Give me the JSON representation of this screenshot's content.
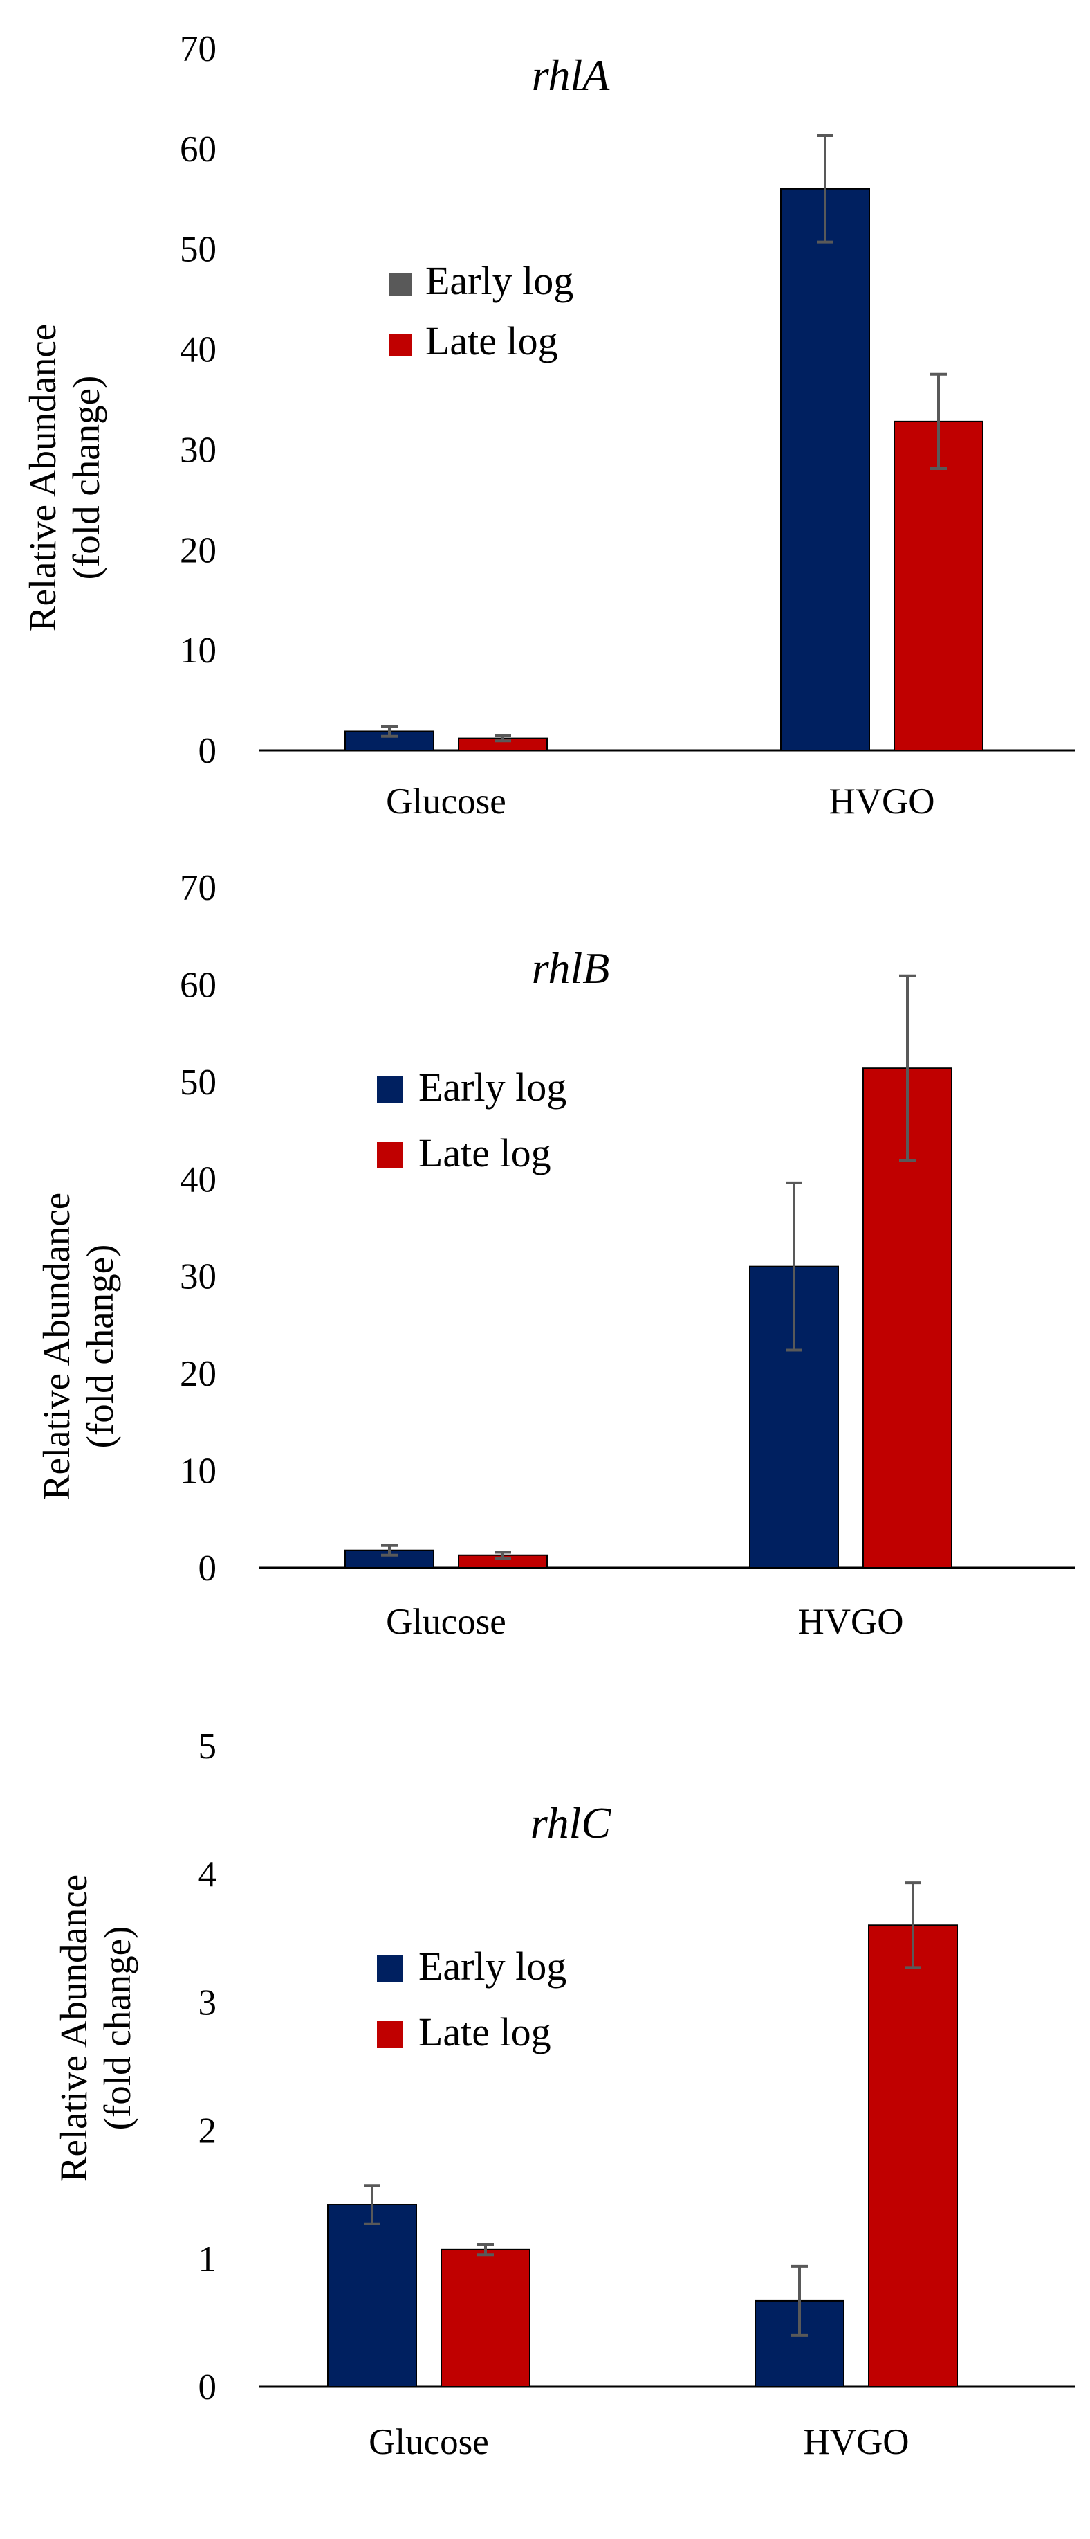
{
  "chart_data": [
    {
      "type": "bar",
      "title": "rhlA",
      "ylabel_line1": "Relative Abundance",
      "ylabel_line2": "(fold change)",
      "categories": [
        "Glucose",
        "HVGO"
      ],
      "ylim": [
        0,
        70
      ],
      "yticks": [
        "0",
        "10",
        "20",
        "30",
        "40",
        "50",
        "60",
        "70"
      ],
      "yticks_values": [
        0,
        10,
        20,
        30,
        40,
        50,
        60,
        70
      ],
      "legend_position": "upper-left",
      "series": [
        {
          "name": "Early log",
          "values": [
            1.9,
            56.0
          ],
          "errors": [
            0.5,
            5.3
          ],
          "color": "#002060",
          "legend_swatch_color": "#595959"
        },
        {
          "name": "Late log",
          "values": [
            1.2,
            32.8
          ],
          "errors": [
            0.25,
            4.7
          ],
          "color": "#C00000",
          "legend_swatch_color": "#C00000"
        }
      ],
      "error_color": "#595959"
    },
    {
      "type": "bar",
      "title": "rhlB",
      "ylabel_line1": "Relative Abundance",
      "ylabel_line2": "(fold change)",
      "categories": [
        "Glucose",
        "HVGO"
      ],
      "ylim": [
        0,
        70
      ],
      "yticks": [
        "0",
        "10",
        "20",
        "30",
        "40",
        "50",
        "60",
        "70"
      ],
      "yticks_values": [
        0,
        10,
        20,
        30,
        40,
        50,
        60,
        70
      ],
      "legend_position": "upper-left",
      "series": [
        {
          "name": "Early log",
          "values": [
            1.8,
            31.0
          ],
          "errors": [
            0.5,
            8.6
          ],
          "color": "#002060",
          "legend_swatch_color": "#002060"
        },
        {
          "name": "Late log",
          "values": [
            1.3,
            51.4
          ],
          "errors": [
            0.3,
            9.5
          ],
          "color": "#C00000",
          "legend_swatch_color": "#C00000"
        }
      ],
      "error_color": "#595959"
    },
    {
      "type": "bar",
      "title": "rhlC",
      "ylabel_line1": "Relative Abundance",
      "ylabel_line2": "(fold change)",
      "categories": [
        "Glucose",
        "HVGO"
      ],
      "ylim": [
        0,
        5
      ],
      "yticks": [
        "0",
        "1",
        "2",
        "3",
        "4",
        "5"
      ],
      "yticks_values": [
        0,
        1,
        2,
        3,
        4,
        5
      ],
      "legend_position": "upper-left",
      "series": [
        {
          "name": "Early log",
          "values": [
            1.42,
            0.67
          ],
          "errors": [
            0.15,
            0.27
          ],
          "color": "#002060",
          "legend_swatch_color": "#002060"
        },
        {
          "name": "Late log",
          "values": [
            1.07,
            3.6
          ],
          "errors": [
            0.04,
            0.33
          ],
          "color": "#C00000",
          "legend_swatch_color": "#C00000"
        }
      ],
      "error_color": "#595959"
    }
  ]
}
